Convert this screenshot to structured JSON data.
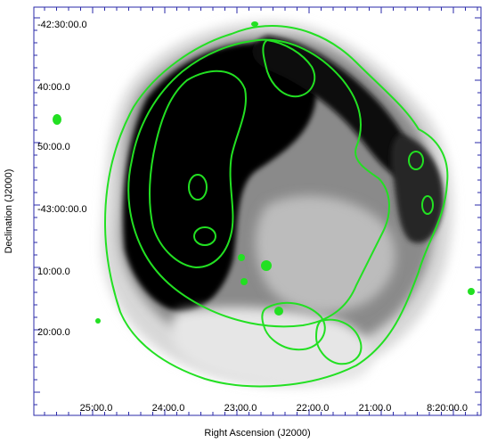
{
  "figure": {
    "x_axis_title": "Right Ascension (J2000)",
    "y_axis_title": "Declination (J2000)",
    "x_tick_labels": [
      "25:00.0",
      "24:00.0",
      "23:00.0",
      "22:00.0",
      "21:00.0",
      "8:20:00.0"
    ],
    "y_tick_labels": [
      "-42:30:00.0",
      "40:00.0",
      "50:00.0",
      "-43:00:00.0",
      "10:00.0",
      "20:00.0"
    ],
    "colors": {
      "frame": "#2a2aa8",
      "contour": "#22e022",
      "emission_dark": "#000000",
      "emission_mid": "#5a5a5a",
      "background": "#ffffff"
    },
    "image_description_icons": [
      "greyscale-emission-image",
      "green-contour-overlay"
    ]
  }
}
